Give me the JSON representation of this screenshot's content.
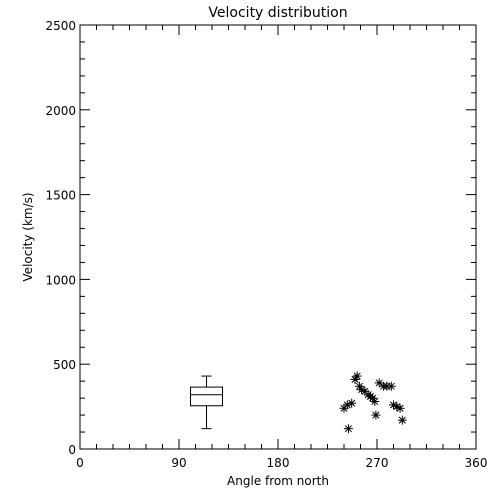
{
  "chart_data": {
    "type": "scatter",
    "title": "Velocity distribution",
    "xlabel": "Angle from north",
    "ylabel": "Velocity (km/s)",
    "xlim": [
      0,
      360
    ],
    "ylim": [
      0,
      2500
    ],
    "grid": false,
    "x_ticks": [
      0,
      90,
      180,
      270,
      360
    ],
    "y_ticks": [
      0,
      500,
      1000,
      1500,
      2000,
      2500
    ],
    "x_minor_step": 15,
    "y_minor_step": 100,
    "boxplot": {
      "x": 115,
      "min": 120,
      "q1": 255,
      "median": 320,
      "q3": 365,
      "max": 430
    },
    "points": [
      [
        240,
        240
      ],
      [
        243,
        260
      ],
      [
        244,
        120
      ],
      [
        247,
        270
      ],
      [
        250,
        410
      ],
      [
        252,
        430
      ],
      [
        254,
        370
      ],
      [
        256,
        350
      ],
      [
        259,
        340
      ],
      [
        262,
        320
      ],
      [
        264,
        310
      ],
      [
        266,
        300
      ],
      [
        268,
        280
      ],
      [
        269,
        200
      ],
      [
        272,
        390
      ],
      [
        276,
        370
      ],
      [
        279,
        370
      ],
      [
        283,
        370
      ],
      [
        285,
        260
      ],
      [
        288,
        250
      ],
      [
        291,
        240
      ],
      [
        293,
        170
      ]
    ],
    "colors": {
      "axis": "#000000",
      "marks": "#000000",
      "background": "#ffffff"
    }
  }
}
